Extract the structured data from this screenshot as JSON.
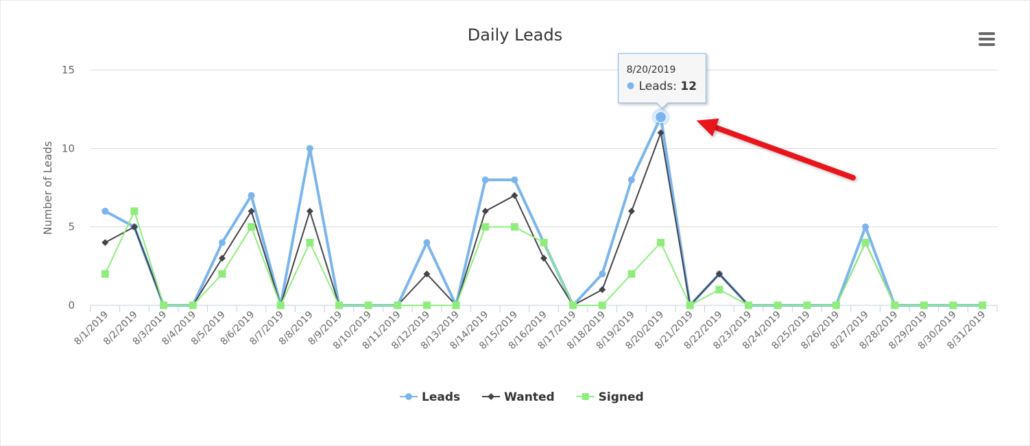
{
  "chart_data": {
    "type": "line",
    "title": "Daily Leads",
    "xlabel": "",
    "ylabel": "Number of Leads",
    "ylim": [
      0,
      15
    ],
    "yticks": [
      0,
      5,
      10,
      15
    ],
    "grid": true,
    "legend_position": "bottom",
    "categories": [
      "8/1/2019",
      "8/2/2019",
      "8/3/2019",
      "8/4/2019",
      "8/5/2019",
      "8/6/2019",
      "8/7/2019",
      "8/8/2019",
      "8/9/2019",
      "8/10/2019",
      "8/11/2019",
      "8/12/2019",
      "8/13/2019",
      "8/14/2019",
      "8/15/2019",
      "8/16/2019",
      "8/17/2019",
      "8/18/2019",
      "8/19/2019",
      "8/20/2019",
      "8/21/2019",
      "8/22/2019",
      "8/23/2019",
      "8/24/2019",
      "8/25/2019",
      "8/26/2019",
      "8/27/2019",
      "8/28/2019",
      "8/29/2019",
      "8/30/2019",
      "8/31/2019"
    ],
    "series": [
      {
        "name": "Leads",
        "color": "#7cb5ec",
        "marker": "circle",
        "values": [
          6,
          5,
          0,
          0,
          4,
          7,
          0,
          10,
          0,
          0,
          0,
          4,
          0,
          8,
          8,
          4,
          0,
          2,
          8,
          12,
          0,
          2,
          0,
          0,
          0,
          0,
          5,
          0,
          0,
          0,
          0
        ]
      },
      {
        "name": "Wanted",
        "color": "#434348",
        "marker": "diamond",
        "values": [
          4,
          5,
          0,
          0,
          3,
          6,
          0,
          6,
          0,
          0,
          0,
          2,
          0,
          6,
          7,
          3,
          0,
          1,
          6,
          11,
          0,
          2,
          0,
          0,
          0,
          0,
          4,
          0,
          0,
          0,
          0
        ]
      },
      {
        "name": "Signed",
        "color": "#90ed7d",
        "marker": "square",
        "values": [
          2,
          6,
          0,
          0,
          2,
          5,
          0,
          4,
          0,
          0,
          0,
          0,
          0,
          5,
          5,
          4,
          0,
          0,
          2,
          4,
          0,
          1,
          0,
          0,
          0,
          0,
          4,
          0,
          0,
          0,
          0
        ]
      }
    ],
    "tooltip": {
      "category": "8/20/2019",
      "series": "Leads",
      "label": "Leads",
      "value": 12
    },
    "annotation": {
      "type": "arrow",
      "color": "#e8141b",
      "points_to": "8/20/2019"
    }
  },
  "menu": {
    "icon": "hamburger-menu-icon"
  }
}
